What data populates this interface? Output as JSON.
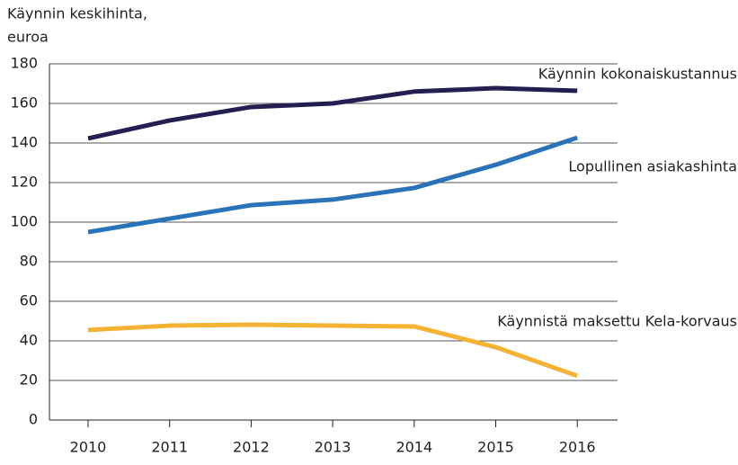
{
  "chart_data": {
    "type": "line",
    "y_label": [
      "Käynnin keskihinta,",
      "euroa"
    ],
    "categories": [
      "2010",
      "2011",
      "2012",
      "2013",
      "2014",
      "2015",
      "2016"
    ],
    "series": [
      {
        "name": "Käynnin kokonaiskustannus",
        "color": "#231f52",
        "values": [
          142.3,
          151.4,
          158.2,
          160,
          166,
          167.7,
          166.4
        ]
      },
      {
        "name": "Lopullinen asiakashinta",
        "color": "#2a73b8",
        "values": [
          95,
          101.8,
          108.6,
          111.4,
          117.3,
          129,
          142.7
        ]
      },
      {
        "name": "Käynnistä maksettu Kela-korvaus",
        "color": "#f5b335",
        "values": [
          45.5,
          47.7,
          48.2,
          47.7,
          47.3,
          36.8,
          22.3
        ]
      }
    ],
    "ylim": [
      0,
      180
    ],
    "yticks": [
      0,
      20,
      40,
      60,
      80,
      100,
      120,
      140,
      160,
      180
    ],
    "grid": true
  }
}
